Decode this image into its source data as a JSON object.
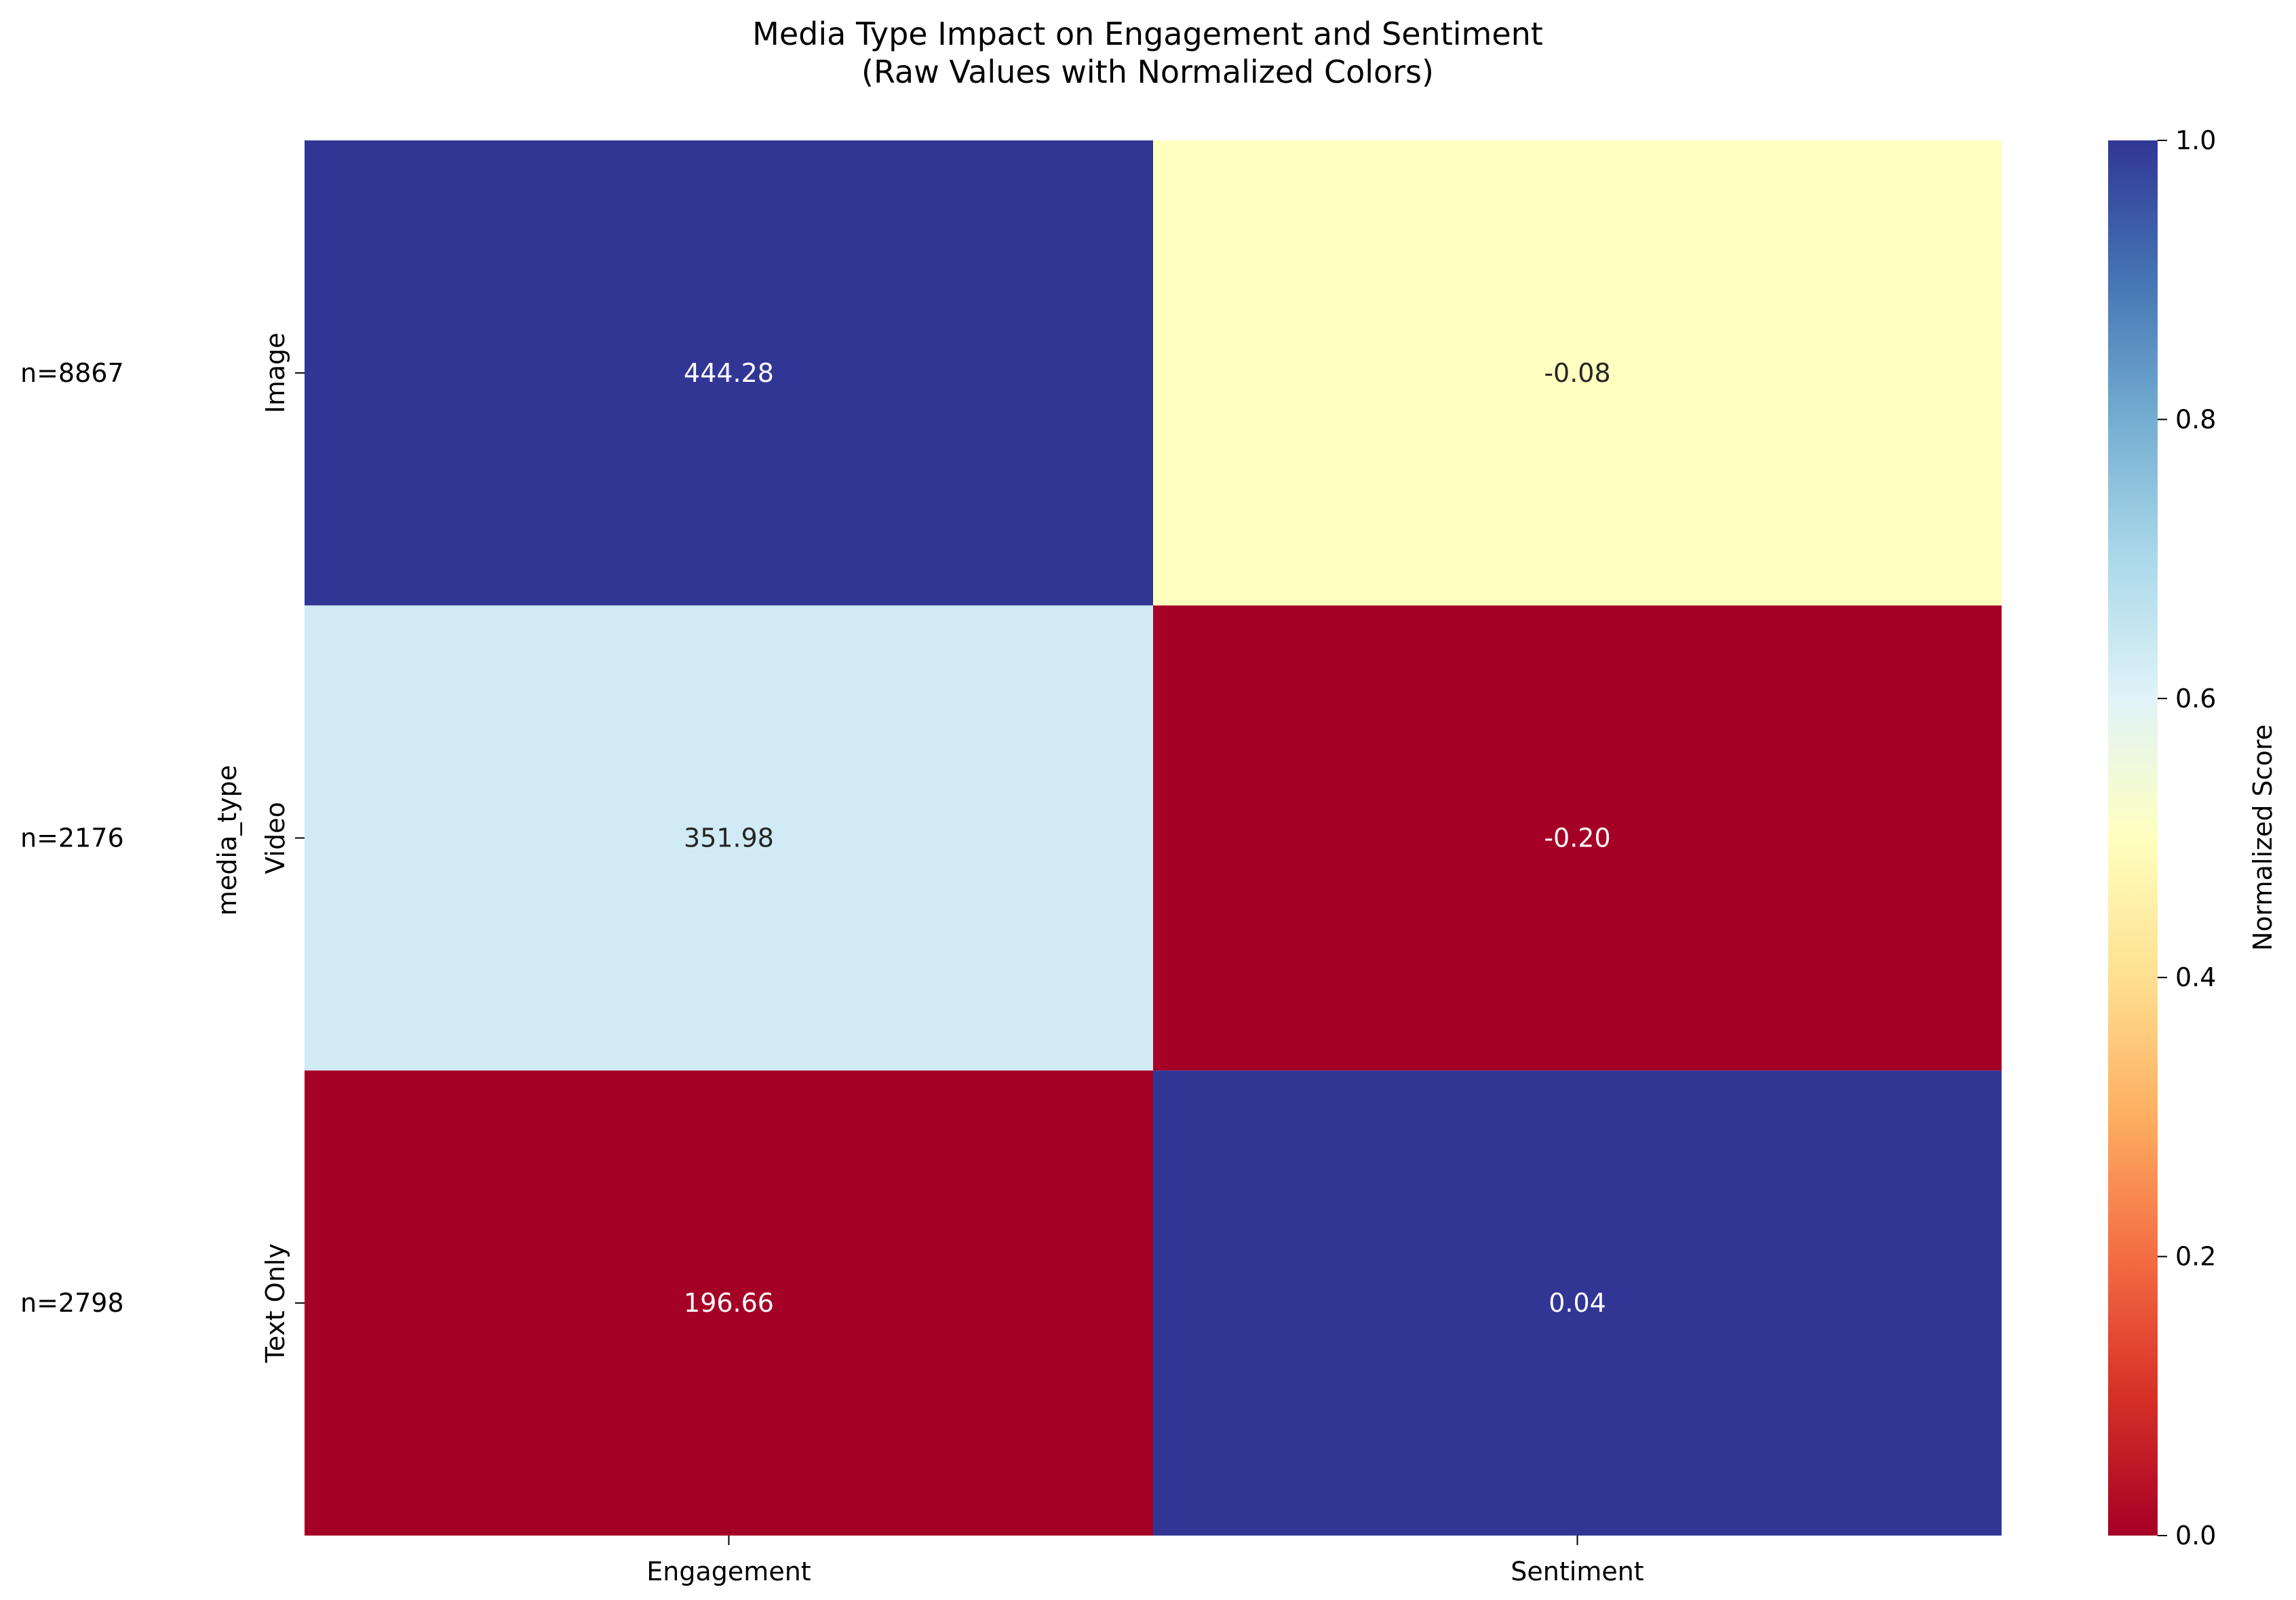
{
  "chart_data": {
    "type": "heatmap",
    "title": "Media Type Impact on Engagement and Sentiment",
    "subtitle": "(Raw Values with Normalized Colors)",
    "ylabel": "media_type",
    "xlabel": "",
    "columns": [
      "Engagement",
      "Sentiment"
    ],
    "rows": [
      "Image",
      "Video",
      "Text Only"
    ],
    "row_counts": [
      "n=8867",
      "n=2176",
      "n=2798"
    ],
    "values": [
      [
        444.28,
        -0.08
      ],
      [
        351.98,
        -0.2
      ],
      [
        196.66,
        0.04
      ]
    ],
    "value_labels": [
      [
        "444.28",
        "-0.08"
      ],
      [
        "351.98",
        "-0.20"
      ],
      [
        "196.66",
        "0.04"
      ]
    ],
    "normalized": [
      [
        1.0,
        0.5
      ],
      [
        0.63,
        0.0
      ],
      [
        0.0,
        1.0
      ]
    ],
    "colormap": "RdYlBu",
    "colorbar": {
      "label": "Normalized Score",
      "range": [
        0.0,
        1.0
      ],
      "ticks": [
        "0.0",
        "0.2",
        "0.4",
        "0.6",
        "0.8",
        "1.0"
      ]
    },
    "grid": false,
    "legend": "right"
  }
}
